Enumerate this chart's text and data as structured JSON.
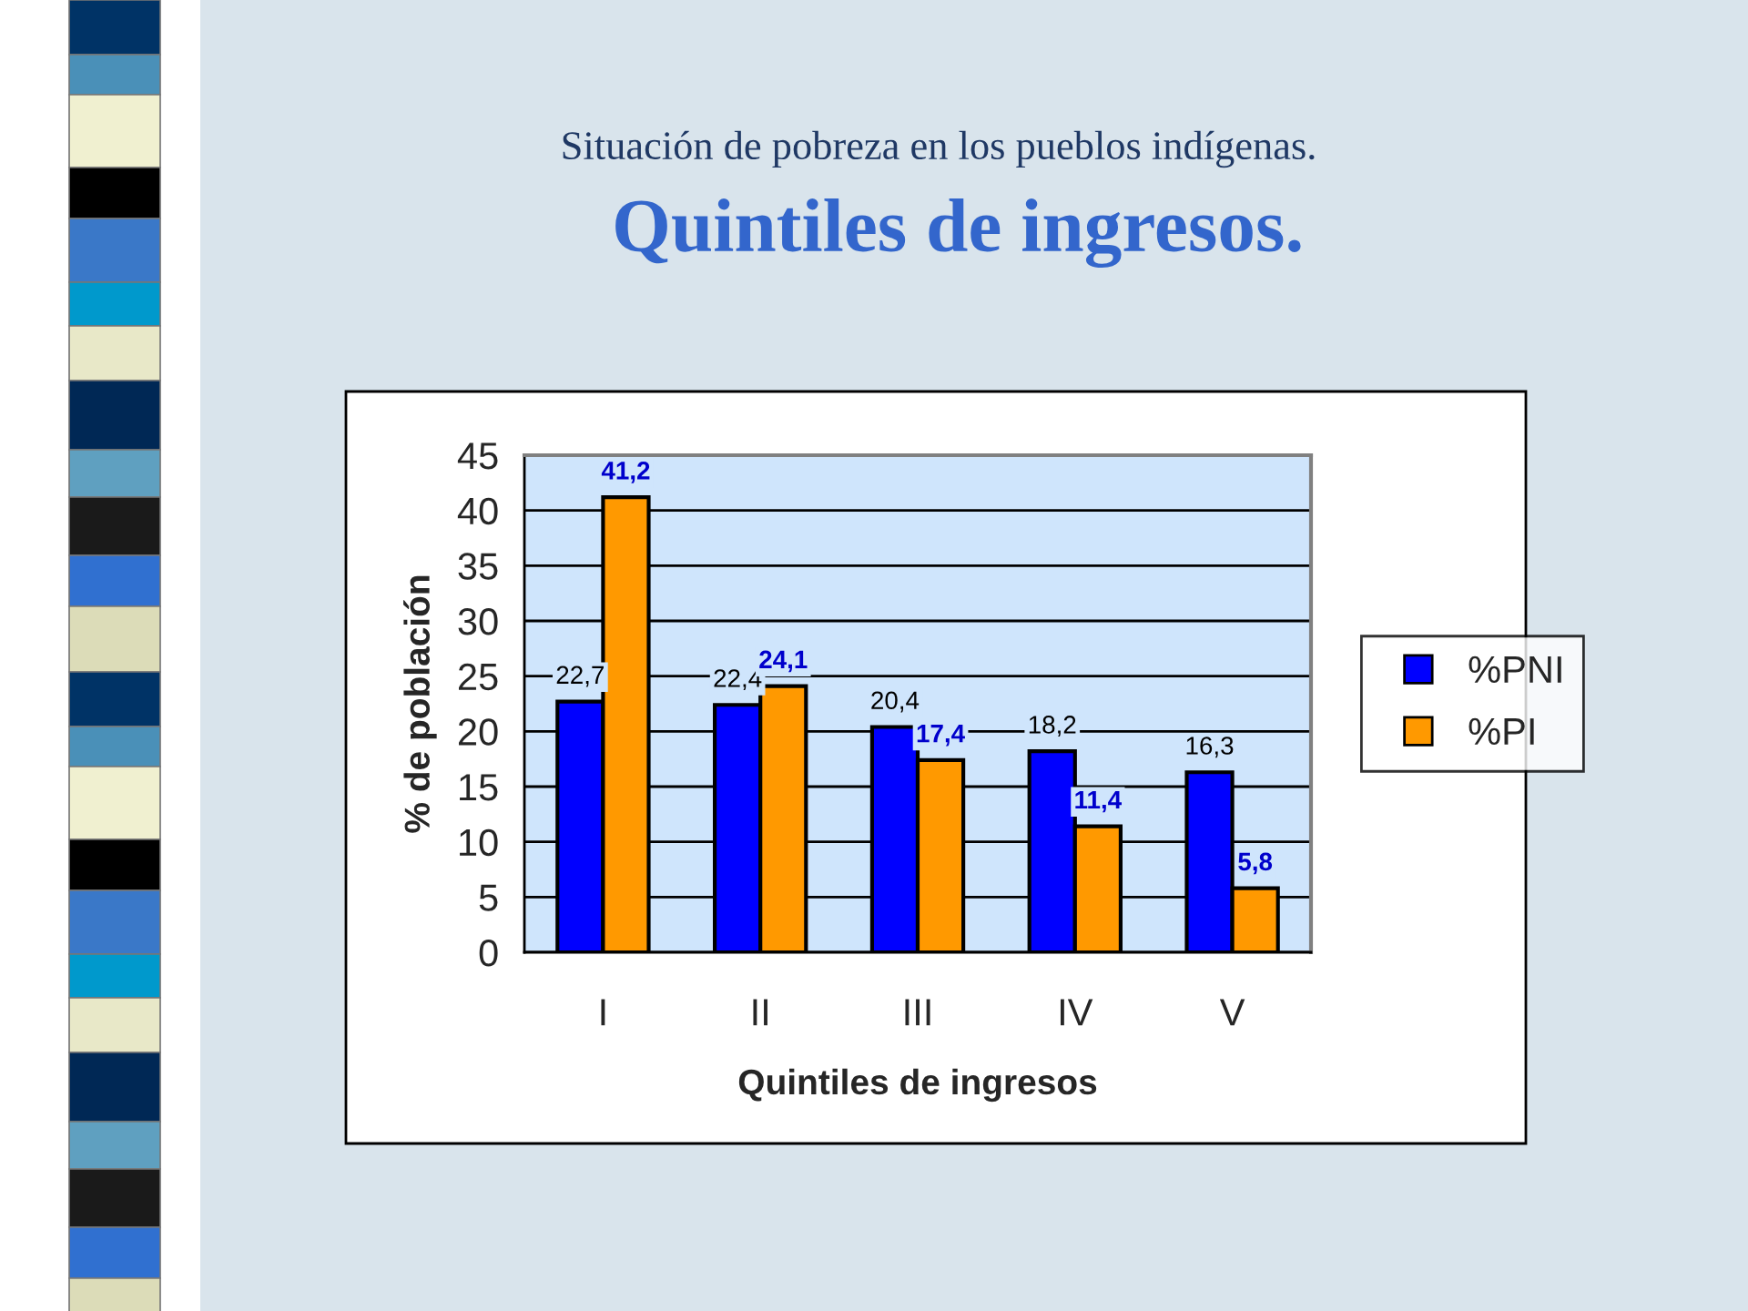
{
  "chart_data": {
    "type": "bar",
    "title": "Situación de pobreza en los pueblos indígenas.",
    "subtitle": "Quintiles de ingresos.",
    "xlabel": "Quintiles de ingresos",
    "ylabel": "% de población",
    "categories": [
      "I",
      "II",
      "III",
      "IV",
      "V"
    ],
    "series": [
      {
        "name": "%PNI",
        "color": "#0000ff",
        "values": [
          22.7,
          22.4,
          20.4,
          18.2,
          16.3
        ],
        "value_labels": [
          "22,7",
          "22,4",
          "20,4",
          "18,2",
          "16,3"
        ]
      },
      {
        "name": "%PI",
        "color": "#ff9900",
        "values": [
          41.2,
          24.1,
          17.4,
          11.4,
          5.8
        ],
        "value_labels": [
          "41,2",
          "24,1",
          "17,4",
          "11,4",
          "5,8"
        ]
      }
    ],
    "ylim": [
      0,
      45
    ],
    "yticks": [
      0,
      5,
      10,
      15,
      20,
      25,
      30,
      35,
      40,
      45
    ],
    "grid": "y",
    "legend": "right"
  }
}
